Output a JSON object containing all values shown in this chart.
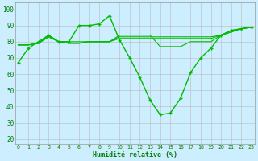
{
  "xlabel": "Humidité relative (%)",
  "bg_color": "#cceeff",
  "grid_color": "#bbbbbb",
  "line_color": "#00bb00",
  "x_ticks": [
    0,
    1,
    2,
    3,
    4,
    5,
    6,
    7,
    8,
    9,
    10,
    11,
    12,
    13,
    14,
    15,
    16,
    17,
    18,
    19,
    20,
    21,
    22,
    23
  ],
  "y_ticks": [
    20,
    30,
    40,
    50,
    60,
    70,
    80,
    90,
    100
  ],
  "ylim": [
    17,
    104
  ],
  "xlim": [
    -0.3,
    23.3
  ],
  "series_main": [
    67,
    76,
    80,
    84,
    80,
    80,
    90,
    90,
    91,
    96,
    81,
    70,
    58,
    44,
    35,
    36,
    45,
    61,
    70,
    76,
    84,
    87,
    88,
    89
  ],
  "series_flat1": [
    78,
    78,
    79,
    84,
    80,
    80,
    80,
    80,
    80,
    80,
    84,
    84,
    84,
    84,
    77,
    77,
    77,
    80,
    80,
    80,
    84,
    87,
    88,
    89
  ],
  "series_flat2": [
    78,
    78,
    79,
    83,
    80,
    79,
    79,
    80,
    80,
    80,
    83,
    83,
    83,
    83,
    83,
    83,
    83,
    83,
    83,
    83,
    84,
    86,
    88,
    89
  ],
  "series_flat3": [
    78,
    78,
    79,
    83,
    80,
    79,
    79,
    80,
    80,
    80,
    82,
    82,
    82,
    82,
    82,
    82,
    82,
    82,
    82,
    82,
    84,
    86,
    88,
    89
  ]
}
